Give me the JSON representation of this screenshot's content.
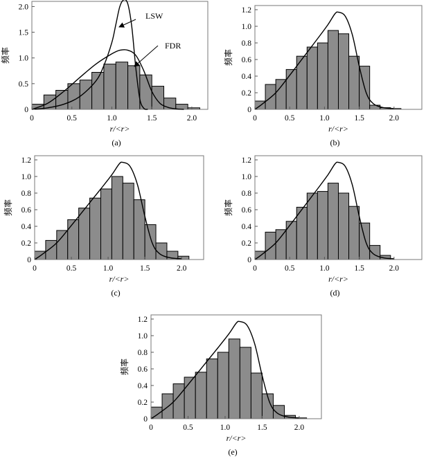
{
  "chart_data": [
    {
      "type": "bar",
      "caption": "(a)",
      "xlabel": "r/<r>",
      "ylabel": "频率",
      "xlim": [
        0,
        2.2
      ],
      "ylim": [
        0,
        2.1
      ],
      "xticks": [
        "0",
        "0.5",
        "1.0",
        "1.5",
        "2.0"
      ],
      "yticks": [
        "0",
        "0.5",
        "1.0",
        "1.5",
        "2.0"
      ],
      "bin_width": 0.15,
      "bin_starts": [
        0,
        0.15,
        0.3,
        0.45,
        0.6,
        0.75,
        0.9,
        1.05,
        1.2,
        1.35,
        1.5,
        1.65,
        1.8,
        1.95
      ],
      "values": [
        0.1,
        0.28,
        0.37,
        0.5,
        0.57,
        0.72,
        0.88,
        0.92,
        0.85,
        0.67,
        0.45,
        0.22,
        0.1,
        0.03
      ],
      "curves": [
        {
          "name": "LSW",
          "points": [
            [
              0,
              0
            ],
            [
              0.2,
              0.03
            ],
            [
              0.4,
              0.1
            ],
            [
              0.6,
              0.25
            ],
            [
              0.8,
              0.55
            ],
            [
              0.9,
              0.85
            ],
            [
              1.0,
              1.3
            ],
            [
              1.05,
              1.65
            ],
            [
              1.1,
              2.0
            ],
            [
              1.15,
              2.13
            ],
            [
              1.2,
              2.05
            ],
            [
              1.25,
              1.6
            ],
            [
              1.3,
              0.8
            ],
            [
              1.35,
              0.2
            ],
            [
              1.4,
              0.02
            ],
            [
              1.45,
              0
            ]
          ]
        },
        {
          "name": "FDR",
          "points": [
            [
              0,
              0
            ],
            [
              0.2,
              0.12
            ],
            [
              0.4,
              0.35
            ],
            [
              0.6,
              0.62
            ],
            [
              0.8,
              0.88
            ],
            [
              1.0,
              1.08
            ],
            [
              1.1,
              1.15
            ],
            [
              1.2,
              1.15
            ],
            [
              1.3,
              1.05
            ],
            [
              1.4,
              0.75
            ],
            [
              1.5,
              0.35
            ],
            [
              1.6,
              0.12
            ],
            [
              1.7,
              0.04
            ],
            [
              1.8,
              0.01
            ],
            [
              1.9,
              0
            ]
          ]
        }
      ],
      "annotations": [
        "LSW",
        "FDR"
      ]
    },
    {
      "type": "bar",
      "caption": "(b)",
      "xlabel": "r/<r>",
      "ylabel": "频率",
      "xlim": [
        0,
        2.4
      ],
      "ylim": [
        0,
        1.25
      ],
      "xticks": [
        "0",
        "0.5",
        "1.0",
        "1.5",
        "2.0"
      ],
      "yticks": [
        "0",
        "0.2",
        "0.4",
        "0.6",
        "0.8",
        "1.0",
        "1.2"
      ],
      "bin_width": 0.15,
      "bin_starts": [
        0,
        0.15,
        0.3,
        0.45,
        0.6,
        0.75,
        0.9,
        1.05,
        1.2,
        1.35,
        1.5,
        1.65,
        1.8,
        1.95
      ],
      "values": [
        0.1,
        0.3,
        0.36,
        0.48,
        0.64,
        0.75,
        0.8,
        0.95,
        0.91,
        0.64,
        0.52,
        0.05,
        0.02,
        0.01
      ],
      "curves": [
        {
          "name": "",
          "points": [
            [
              0,
              0
            ],
            [
              0.1,
              0.06
            ],
            [
              0.3,
              0.2
            ],
            [
              0.5,
              0.41
            ],
            [
              0.7,
              0.63
            ],
            [
              0.9,
              0.85
            ],
            [
              1.05,
              1.02
            ],
            [
              1.15,
              1.15
            ],
            [
              1.2,
              1.17
            ],
            [
              1.3,
              1.12
            ],
            [
              1.4,
              0.9
            ],
            [
              1.5,
              0.52
            ],
            [
              1.6,
              0.2
            ],
            [
              1.7,
              0.07
            ],
            [
              1.85,
              0.02
            ],
            [
              2.0,
              0.01
            ]
          ]
        }
      ]
    },
    {
      "type": "bar",
      "caption": "(c)",
      "xlabel": "r/<r>",
      "ylabel": "频率",
      "xlim": [
        0,
        2.3
      ],
      "ylim": [
        0,
        1.25
      ],
      "xticks": [
        "0",
        "0.5",
        "1.0",
        "1.5",
        "2.0"
      ],
      "yticks": [
        "0",
        "0.2",
        "0.4",
        "0.6",
        "0.8",
        "1.0",
        "1.2"
      ],
      "bin_width": 0.15,
      "bin_starts": [
        0,
        0.15,
        0.3,
        0.45,
        0.6,
        0.75,
        0.9,
        1.05,
        1.2,
        1.35,
        1.5,
        1.65,
        1.8,
        1.95
      ],
      "values": [
        0.1,
        0.23,
        0.35,
        0.48,
        0.62,
        0.74,
        0.85,
        1.0,
        0.92,
        0.72,
        0.42,
        0.2,
        0.1,
        0.04
      ],
      "curves": [
        {
          "name": "",
          "points": [
            [
              0,
              0
            ],
            [
              0.1,
              0.06
            ],
            [
              0.3,
              0.2
            ],
            [
              0.5,
              0.41
            ],
            [
              0.7,
              0.63
            ],
            [
              0.9,
              0.85
            ],
            [
              1.05,
              1.02
            ],
            [
              1.15,
              1.15
            ],
            [
              1.2,
              1.17
            ],
            [
              1.3,
              1.12
            ],
            [
              1.4,
              0.9
            ],
            [
              1.5,
              0.52
            ],
            [
              1.6,
              0.2
            ],
            [
              1.7,
              0.07
            ],
            [
              1.85,
              0.02
            ],
            [
              2.0,
              0.01
            ]
          ]
        }
      ]
    },
    {
      "type": "bar",
      "caption": "(d)",
      "xlabel": "r/<r>",
      "ylabel": "频率",
      "xlim": [
        0,
        2.4
      ],
      "ylim": [
        0,
        1.25
      ],
      "xticks": [
        "0",
        "0.5",
        "1.0",
        "1.5",
        "2.0"
      ],
      "yticks": [
        "0",
        "0.2",
        "0.4",
        "0.6",
        "0.8",
        "1.0",
        "1.2"
      ],
      "bin_width": 0.15,
      "bin_starts": [
        0,
        0.15,
        0.3,
        0.45,
        0.6,
        0.75,
        0.9,
        1.05,
        1.2,
        1.35,
        1.5,
        1.65,
        1.8
      ],
      "values": [
        0.1,
        0.33,
        0.36,
        0.46,
        0.63,
        0.8,
        0.82,
        0.92,
        0.8,
        0.64,
        0.44,
        0.17,
        0.05
      ],
      "curves": [
        {
          "name": "",
          "points": [
            [
              0,
              0
            ],
            [
              0.1,
              0.06
            ],
            [
              0.3,
              0.2
            ],
            [
              0.5,
              0.41
            ],
            [
              0.7,
              0.63
            ],
            [
              0.9,
              0.85
            ],
            [
              1.05,
              1.02
            ],
            [
              1.15,
              1.15
            ],
            [
              1.2,
              1.17
            ],
            [
              1.3,
              1.12
            ],
            [
              1.4,
              0.9
            ],
            [
              1.5,
              0.52
            ],
            [
              1.6,
              0.2
            ],
            [
              1.7,
              0.07
            ],
            [
              1.85,
              0.02
            ],
            [
              2.0,
              0.01
            ]
          ]
        }
      ]
    },
    {
      "type": "bar",
      "caption": "(e)",
      "xlabel": "r/<r>",
      "ylabel": "频率",
      "xlim": [
        0,
        2.3
      ],
      "ylim": [
        0,
        1.25
      ],
      "xticks": [
        "0",
        "0.5",
        "1.0",
        "1.5",
        "2.0"
      ],
      "yticks": [
        "0",
        "0.2",
        "0.4",
        "0.6",
        "0.8",
        "1.0",
        "1.2"
      ],
      "bin_width": 0.15,
      "bin_starts": [
        0,
        0.15,
        0.3,
        0.45,
        0.6,
        0.75,
        0.9,
        1.05,
        1.2,
        1.35,
        1.5,
        1.65,
        1.8,
        1.95
      ],
      "values": [
        0.14,
        0.3,
        0.42,
        0.5,
        0.56,
        0.72,
        0.8,
        0.96,
        0.86,
        0.55,
        0.3,
        0.16,
        0.04,
        0.01
      ],
      "curves": [
        {
          "name": "",
          "points": [
            [
              0,
              0
            ],
            [
              0.1,
              0.06
            ],
            [
              0.3,
              0.2
            ],
            [
              0.5,
              0.41
            ],
            [
              0.7,
              0.63
            ],
            [
              0.9,
              0.85
            ],
            [
              1.05,
              1.02
            ],
            [
              1.15,
              1.15
            ],
            [
              1.2,
              1.17
            ],
            [
              1.3,
              1.12
            ],
            [
              1.4,
              0.9
            ],
            [
              1.5,
              0.52
            ],
            [
              1.6,
              0.2
            ],
            [
              1.7,
              0.07
            ],
            [
              1.85,
              0.02
            ],
            [
              2.0,
              0.01
            ]
          ]
        }
      ]
    }
  ]
}
